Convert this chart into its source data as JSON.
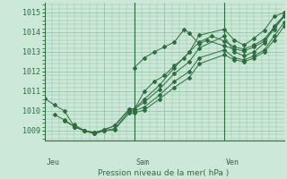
{
  "title": "Pression niveau de la mer( hPa )",
  "bg_color": "#cce8d8",
  "grid_color": "#99c4aa",
  "line_color": "#2d6e3e",
  "ylim": [
    1008.5,
    1015.5
  ],
  "yticks": [
    1009,
    1010,
    1011,
    1012,
    1013,
    1014,
    1015
  ],
  "xlim": [
    0,
    96
  ],
  "vlines_x": [
    0,
    36,
    72
  ],
  "day_labels": [
    {
      "label": "Jeu",
      "x": 0
    },
    {
      "label": "Sam",
      "x": 36
    },
    {
      "label": "Ven",
      "x": 72
    }
  ],
  "series": [
    [
      0,
      1010.65,
      4,
      1010.3,
      8,
      1010.0,
      12,
      1009.2,
      16,
      1009.0,
      20,
      1008.9,
      24,
      1009.05,
      28,
      1009.25,
      34,
      1010.1,
      36,
      1010.1,
      40,
      1010.6,
      46,
      1011.3,
      52,
      1012.2,
      58,
      1013.0,
      62,
      1013.85,
      72,
      1014.15,
      76,
      1013.6,
      80,
      1013.35,
      84,
      1013.7,
      88,
      1014.1,
      92,
      1014.8,
      96,
      1015.0
    ],
    [
      4,
      1009.8,
      8,
      1009.55,
      12,
      1009.2,
      16,
      1009.0,
      20,
      1008.9,
      24,
      1009.05,
      28,
      1009.25,
      34,
      1010.1,
      36,
      1010.1,
      40,
      1010.45,
      46,
      1011.1,
      52,
      1011.9,
      58,
      1012.5,
      62,
      1013.2,
      72,
      1013.8,
      76,
      1013.0,
      80,
      1012.8,
      84,
      1013.0,
      88,
      1013.45,
      92,
      1014.3,
      96,
      1014.85
    ],
    [
      8,
      1009.5,
      12,
      1009.2,
      16,
      1009.0,
      20,
      1008.85,
      24,
      1009.0,
      28,
      1009.1,
      34,
      1010.0,
      36,
      1010.0,
      40,
      1010.2,
      46,
      1010.8,
      52,
      1011.5,
      58,
      1012.0,
      62,
      1012.7,
      72,
      1013.1,
      76,
      1012.7,
      80,
      1012.6,
      84,
      1012.8,
      88,
      1013.1,
      92,
      1013.8,
      96,
      1014.5
    ],
    [
      12,
      1009.3,
      16,
      1009.0,
      20,
      1008.85,
      24,
      1009.0,
      28,
      1009.05,
      34,
      1009.9,
      36,
      1009.9,
      40,
      1010.05,
      46,
      1010.6,
      52,
      1011.2,
      58,
      1011.7,
      62,
      1012.4,
      72,
      1012.85,
      76,
      1012.6,
      80,
      1012.5,
      84,
      1012.7,
      88,
      1013.0,
      92,
      1013.6,
      96,
      1014.3
    ],
    [
      36,
      1012.2,
      40,
      1012.7,
      44,
      1013.0,
      48,
      1013.25,
      52,
      1013.5,
      56,
      1014.15,
      58,
      1013.95,
      62,
      1013.4,
      65,
      1013.6,
      72,
      1013.3,
      76,
      1013.15,
      80,
      1013.05,
      84,
      1013.25,
      88,
      1013.55,
      92,
      1014.15,
      96,
      1014.8
    ],
    [
      36,
      1010.1,
      40,
      1011.0,
      44,
      1011.5,
      48,
      1011.8,
      52,
      1012.3,
      56,
      1012.7,
      58,
      1013.0,
      62,
      1013.5,
      67,
      1013.8,
      72,
      1013.55,
      76,
      1013.25,
      80,
      1013.15,
      84,
      1013.35,
      88,
      1013.65,
      92,
      1014.25,
      96,
      1014.85
    ]
  ]
}
